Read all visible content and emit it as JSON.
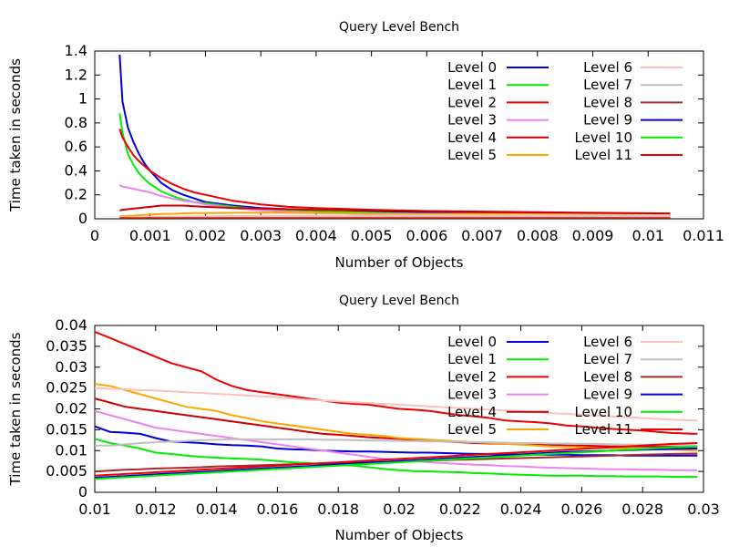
{
  "chart_data": [
    {
      "type": "line",
      "title": "Query Level Bench",
      "xlabel": "Number of Objects",
      "ylabel": "Time taken in seconds",
      "xlim": [
        0,
        0.011
      ],
      "ylim": [
        0,
        1.4
      ],
      "xticks": [
        "0",
        "0.001",
        "0.002",
        "0.003",
        "0.004",
        "0.005",
        "0.006",
        "0.007",
        "0.008",
        "0.009",
        "0.01",
        "0.011"
      ],
      "yticks": [
        "0",
        "0.2",
        "0.4",
        "0.6",
        "0.8",
        "1",
        "1.2",
        "1.4"
      ],
      "legend_position": "top-right, two columns",
      "x": [
        0.00045,
        0.0005,
        0.0006,
        0.0007,
        0.0008,
        0.0009,
        0.001,
        0.0012,
        0.0014,
        0.0016,
        0.0018,
        0.002,
        0.0025,
        0.003,
        0.0035,
        0.004,
        0.005,
        0.006,
        0.007,
        0.008,
        0.009,
        0.0104
      ],
      "series": [
        {
          "name": "Level 0",
          "color": "#0000dd",
          "values": [
            1.37,
            0.98,
            0.76,
            0.64,
            0.54,
            0.46,
            0.4,
            0.3,
            0.24,
            0.2,
            0.17,
            0.14,
            0.11,
            0.09,
            0.08,
            0.07,
            0.06,
            0.05,
            0.045,
            0.04,
            0.035,
            0.03
          ]
        },
        {
          "name": "Level 1",
          "color": "#00ee00",
          "values": [
            0.88,
            0.72,
            0.54,
            0.45,
            0.38,
            0.33,
            0.29,
            0.23,
            0.19,
            0.16,
            0.14,
            0.13,
            0.1,
            0.08,
            0.07,
            0.065,
            0.05,
            0.04,
            0.035,
            0.03,
            0.028,
            0.025
          ]
        },
        {
          "name": "Level 2",
          "color": "#ee0000",
          "values": [
            0.75,
            0.68,
            0.6,
            0.53,
            0.48,
            0.44,
            0.4,
            0.34,
            0.29,
            0.25,
            0.22,
            0.2,
            0.15,
            0.12,
            0.1,
            0.09,
            0.075,
            0.065,
            0.055,
            0.05,
            0.045,
            0.04
          ]
        },
        {
          "name": "Level 3",
          "color": "#ee82ee",
          "values": [
            0.28,
            0.27,
            0.26,
            0.25,
            0.24,
            0.23,
            0.22,
            0.19,
            0.17,
            0.15,
            0.14,
            0.12,
            0.09,
            0.07,
            0.06,
            0.05,
            0.04,
            0.03,
            0.025,
            0.02,
            0.018,
            0.015
          ]
        },
        {
          "name": "Level 4",
          "color": "#cc0000",
          "values": [
            0.07,
            0.075,
            0.08,
            0.085,
            0.09,
            0.095,
            0.1,
            0.11,
            0.11,
            0.11,
            0.105,
            0.1,
            0.09,
            0.085,
            0.08,
            0.075,
            0.07,
            0.065,
            0.06,
            0.055,
            0.05,
            0.045
          ]
        },
        {
          "name": "Level 5",
          "color": "#ffa500",
          "values": [
            0.02,
            0.022,
            0.025,
            0.027,
            0.03,
            0.033,
            0.035,
            0.04,
            0.042,
            0.045,
            0.047,
            0.048,
            0.05,
            0.05,
            0.05,
            0.048,
            0.045,
            0.042,
            0.04,
            0.037,
            0.034,
            0.03
          ]
        },
        {
          "name": "Level 6",
          "color": "#ffc0c0",
          "values": [
            0.012,
            0.012,
            0.013,
            0.013,
            0.014,
            0.014,
            0.015,
            0.016,
            0.017,
            0.018,
            0.019,
            0.02,
            0.022,
            0.024,
            0.025,
            0.026,
            0.027,
            0.028,
            0.029,
            0.03,
            0.03,
            0.03
          ]
        },
        {
          "name": "Level 7",
          "color": "#c0c0c0",
          "values": [
            0.008,
            0.008,
            0.009,
            0.009,
            0.009,
            0.01,
            0.01,
            0.011,
            0.011,
            0.012,
            0.012,
            0.013,
            0.013,
            0.014,
            0.014,
            0.015,
            0.015,
            0.016,
            0.016,
            0.016,
            0.017,
            0.017
          ]
        },
        {
          "name": "Level 8",
          "color": "#a52a2a",
          "values": [
            0.005,
            0.005,
            0.005,
            0.005,
            0.005,
            0.005,
            0.005,
            0.005,
            0.005,
            0.005,
            0.005,
            0.005,
            0.005,
            0.005,
            0.005,
            0.005,
            0.005,
            0.005,
            0.005,
            0.005,
            0.005,
            0.005
          ]
        },
        {
          "name": "Level 9",
          "color": "#0000dd",
          "values": [
            0.004,
            0.004,
            0.004,
            0.004,
            0.004,
            0.004,
            0.004,
            0.004,
            0.004,
            0.004,
            0.004,
            0.004,
            0.004,
            0.004,
            0.004,
            0.004,
            0.004,
            0.004,
            0.004,
            0.004,
            0.004,
            0.004
          ]
        },
        {
          "name": "Level 10",
          "color": "#00ee00",
          "values": [
            0.003,
            0.003,
            0.003,
            0.003,
            0.003,
            0.003,
            0.003,
            0.003,
            0.003,
            0.003,
            0.003,
            0.003,
            0.003,
            0.003,
            0.003,
            0.003,
            0.003,
            0.003,
            0.003,
            0.003,
            0.003,
            0.003
          ]
        },
        {
          "name": "Level 11",
          "color": "#ee0000",
          "values": [
            0.002,
            0.002,
            0.002,
            0.002,
            0.002,
            0.002,
            0.002,
            0.002,
            0.002,
            0.002,
            0.002,
            0.002,
            0.002,
            0.002,
            0.002,
            0.002,
            0.002,
            0.002,
            0.002,
            0.002,
            0.002,
            0.002
          ]
        }
      ]
    },
    {
      "type": "line",
      "title": "Query Level Bench",
      "xlabel": "Number of Objects",
      "ylabel": "Time taken in seconds",
      "xlim": [
        0.01,
        0.03
      ],
      "ylim": [
        0,
        0.04
      ],
      "xticks": [
        "0.01",
        "0.012",
        "0.014",
        "0.016",
        "0.018",
        "0.02",
        "0.022",
        "0.024",
        "0.026",
        "0.028",
        "0.03"
      ],
      "yticks": [
        "0",
        "0.005",
        "0.01",
        "0.015",
        "0.02",
        "0.025",
        "0.03",
        "0.035",
        "0.04"
      ],
      "legend_position": "top-right, two columns",
      "x": [
        0.01,
        0.0105,
        0.011,
        0.0115,
        0.012,
        0.0125,
        0.013,
        0.0135,
        0.014,
        0.0145,
        0.015,
        0.0155,
        0.016,
        0.0165,
        0.017,
        0.0175,
        0.018,
        0.0185,
        0.019,
        0.0195,
        0.02,
        0.0205,
        0.021,
        0.0215,
        0.022,
        0.0225,
        0.023,
        0.0235,
        0.024,
        0.0245,
        0.025,
        0.0255,
        0.026,
        0.0265,
        0.027,
        0.0275,
        0.028,
        0.0285,
        0.029,
        0.0298
      ],
      "series": [
        {
          "name": "Level 0",
          "color": "#0000dd",
          "values": [
            0.0158,
            0.0145,
            0.0143,
            0.014,
            0.013,
            0.0122,
            0.012,
            0.0118,
            0.0115,
            0.0113,
            0.0112,
            0.011,
            0.0105,
            0.0103,
            0.0102,
            0.01,
            0.0099,
            0.0098,
            0.0098,
            0.0097,
            0.0096,
            0.0095,
            0.0095,
            0.0094,
            0.0093,
            0.0092,
            0.0092,
            0.0091,
            0.009,
            0.009,
            0.009,
            0.009,
            0.0089,
            0.0089,
            0.0089,
            0.0088,
            0.0088,
            0.0088,
            0.0088,
            0.0088
          ]
        },
        {
          "name": "Level 1",
          "color": "#00ee00",
          "values": [
            0.0128,
            0.0118,
            0.0112,
            0.0105,
            0.0095,
            0.0092,
            0.0088,
            0.0085,
            0.0083,
            0.0081,
            0.008,
            0.0078,
            0.0075,
            0.0072,
            0.007,
            0.0068,
            0.0066,
            0.0064,
            0.006,
            0.0056,
            0.0053,
            0.0051,
            0.005,
            0.0049,
            0.0048,
            0.0046,
            0.0045,
            0.0043,
            0.0042,
            0.0041,
            0.004,
            0.004,
            0.004,
            0.0039,
            0.0039,
            0.0038,
            0.0038,
            0.0038,
            0.0037,
            0.0037
          ]
        },
        {
          "name": "Level 2",
          "color": "#ee0000",
          "values": [
            0.0385,
            0.037,
            0.0355,
            0.034,
            0.0325,
            0.031,
            0.03,
            0.029,
            0.027,
            0.0255,
            0.0245,
            0.024,
            0.0235,
            0.023,
            0.0225,
            0.022,
            0.0215,
            0.0212,
            0.021,
            0.0205,
            0.02,
            0.0198,
            0.0195,
            0.019,
            0.0185,
            0.0182,
            0.0178,
            0.0172,
            0.017,
            0.0168,
            0.0165,
            0.016,
            0.0158,
            0.0155,
            0.0152,
            0.015,
            0.0148,
            0.0145,
            0.0142,
            0.014
          ]
        },
        {
          "name": "Level 3",
          "color": "#ee82ee",
          "values": [
            0.0195,
            0.0185,
            0.0175,
            0.0165,
            0.0155,
            0.015,
            0.0145,
            0.014,
            0.0135,
            0.013,
            0.0125,
            0.012,
            0.0115,
            0.011,
            0.0105,
            0.01,
            0.0095,
            0.009,
            0.0085,
            0.008,
            0.0078,
            0.0075,
            0.0072,
            0.007,
            0.0068,
            0.0066,
            0.0065,
            0.0063,
            0.0062,
            0.006,
            0.0059,
            0.0058,
            0.0057,
            0.0056,
            0.0055,
            0.0055,
            0.0054,
            0.0054,
            0.0053,
            0.0053
          ]
        },
        {
          "name": "Level 4",
          "color": "#cc0000",
          "values": [
            0.0225,
            0.0215,
            0.0205,
            0.02,
            0.0195,
            0.019,
            0.0185,
            0.018,
            0.0175,
            0.017,
            0.0165,
            0.016,
            0.0155,
            0.015,
            0.0145,
            0.014,
            0.0138,
            0.0135,
            0.0132,
            0.013,
            0.0128,
            0.0126,
            0.0124,
            0.0122,
            0.012,
            0.0118,
            0.0117,
            0.0116,
            0.0115,
            0.0114,
            0.0113,
            0.0112,
            0.0112,
            0.0111,
            0.011,
            0.011,
            0.011,
            0.011,
            0.011,
            0.011
          ]
        },
        {
          "name": "Level 5",
          "color": "#ffa500",
          "values": [
            0.026,
            0.0255,
            0.0245,
            0.0235,
            0.0225,
            0.0215,
            0.0205,
            0.02,
            0.0195,
            0.0185,
            0.0178,
            0.017,
            0.0165,
            0.016,
            0.0155,
            0.015,
            0.0145,
            0.014,
            0.0138,
            0.0135,
            0.013,
            0.0128,
            0.0126,
            0.0124,
            0.0122,
            0.012,
            0.0118,
            0.0116,
            0.0114,
            0.0112,
            0.011,
            0.0109,
            0.0108,
            0.0107,
            0.0106,
            0.0105,
            0.0104,
            0.0103,
            0.0102,
            0.01
          ]
        },
        {
          "name": "Level 6",
          "color": "#ffc0c0",
          "values": [
            0.025,
            0.0248,
            0.0247,
            0.0245,
            0.0244,
            0.0242,
            0.024,
            0.0238,
            0.0236,
            0.0234,
            0.0232,
            0.023,
            0.0228,
            0.0225,
            0.0222,
            0.022,
            0.0218,
            0.0216,
            0.0214,
            0.0212,
            0.021,
            0.0208,
            0.0206,
            0.0204,
            0.0202,
            0.02,
            0.0198,
            0.0196,
            0.0194,
            0.0192,
            0.019,
            0.0188,
            0.0186,
            0.0184,
            0.0182,
            0.018,
            0.0178,
            0.0176,
            0.0174,
            0.0172
          ]
        },
        {
          "name": "Level 7",
          "color": "#c0c0c0",
          "values": [
            0.0112,
            0.0112,
            0.0115,
            0.0118,
            0.012,
            0.0122,
            0.0123,
            0.0125,
            0.0126,
            0.0127,
            0.0127,
            0.0127,
            0.0127,
            0.0127,
            0.0127,
            0.0126,
            0.0126,
            0.0125,
            0.0124,
            0.0124,
            0.0123,
            0.0123,
            0.0122,
            0.0122,
            0.0121,
            0.012,
            0.012,
            0.0119,
            0.0118,
            0.0118,
            0.0117,
            0.0117,
            0.0116,
            0.0116,
            0.0115,
            0.0114,
            0.0114,
            0.0113,
            0.0113,
            0.0112
          ]
        },
        {
          "name": "Level 8",
          "color": "#a52a2a",
          "values": [
            0.005,
            0.0052,
            0.0054,
            0.0055,
            0.0057,
            0.0058,
            0.0059,
            0.006,
            0.0062,
            0.0063,
            0.0064,
            0.0065,
            0.0066,
            0.0067,
            0.0068,
            0.0069,
            0.007,
            0.0071,
            0.0072,
            0.0073,
            0.0074,
            0.0075,
            0.0076,
            0.0077,
            0.0078,
            0.0079,
            0.008,
            0.0081,
            0.0082,
            0.0083,
            0.0084,
            0.0085,
            0.0086,
            0.0087,
            0.0088,
            0.0089,
            0.009,
            0.0091,
            0.0092,
            0.0093
          ]
        },
        {
          "name": "Level 9",
          "color": "#0000dd",
          "values": [
            0.0035,
            0.0037,
            0.0039,
            0.0041,
            0.0043,
            0.0045,
            0.0047,
            0.0049,
            0.0051,
            0.0053,
            0.0055,
            0.0057,
            0.0059,
            0.0061,
            0.0063,
            0.0065,
            0.0067,
            0.0069,
            0.0071,
            0.0073,
            0.0075,
            0.0077,
            0.0079,
            0.0081,
            0.0083,
            0.0085,
            0.0087,
            0.0089,
            0.0091,
            0.0093,
            0.0095,
            0.0097,
            0.0098,
            0.0099,
            0.01,
            0.0101,
            0.0102,
            0.0103,
            0.0104,
            0.0105
          ]
        },
        {
          "name": "Level 10",
          "color": "#00ee00",
          "values": [
            0.0032,
            0.0034,
            0.0036,
            0.0038,
            0.004,
            0.0042,
            0.0044,
            0.0046,
            0.0048,
            0.005,
            0.0052,
            0.0054,
            0.0056,
            0.0058,
            0.006,
            0.0062,
            0.0064,
            0.0066,
            0.0068,
            0.007,
            0.0072,
            0.0074,
            0.0076,
            0.0078,
            0.008,
            0.0082,
            0.0084,
            0.0086,
            0.0088,
            0.009,
            0.0092,
            0.0094,
            0.0096,
            0.0098,
            0.01,
            0.0102,
            0.0104,
            0.0106,
            0.0108,
            0.011
          ]
        },
        {
          "name": "Level 11",
          "color": "#ee0000",
          "values": [
            0.004,
            0.0042,
            0.0044,
            0.0046,
            0.0048,
            0.005,
            0.0052,
            0.0054,
            0.0056,
            0.0058,
            0.006,
            0.0062,
            0.0064,
            0.0066,
            0.0068,
            0.007,
            0.0072,
            0.0074,
            0.0076,
            0.0078,
            0.008,
            0.0082,
            0.0084,
            0.0086,
            0.0088,
            0.009,
            0.0092,
            0.0094,
            0.0096,
            0.0098,
            0.01,
            0.0102,
            0.0104,
            0.0106,
            0.0108,
            0.011,
            0.0112,
            0.0114,
            0.0116,
            0.0118
          ]
        }
      ]
    }
  ]
}
